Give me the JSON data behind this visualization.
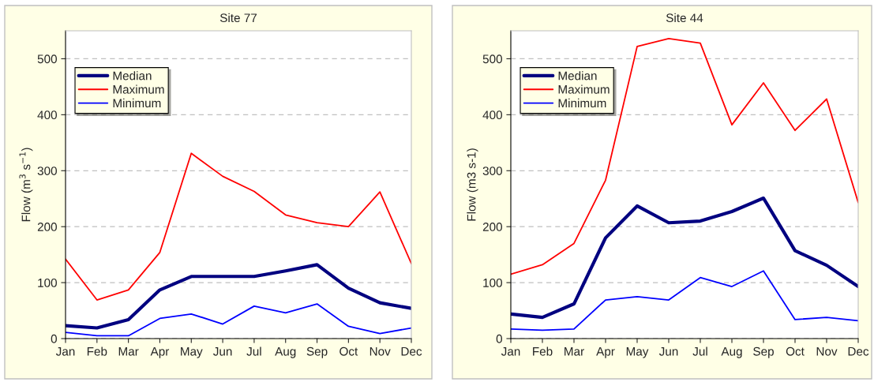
{
  "chart_data": [
    {
      "type": "line",
      "title": "Site 77",
      "ylabel": "Flow (m$^{3}$ s$^{−1}$)",
      "categories": [
        "Jan",
        "Feb",
        "Mar",
        "Apr",
        "May",
        "Jun",
        "Jul",
        "Aug",
        "Sep",
        "Oct",
        "Nov",
        "Dec"
      ],
      "ylim": [
        0,
        550
      ],
      "yticks": [
        0,
        100,
        200,
        300,
        400,
        500
      ],
      "grid": "y",
      "legend": "top left",
      "line_style": "solid",
      "series": [
        {
          "name": "Median",
          "color": "#000080",
          "values": [
            23,
            19,
            34,
            87,
            111,
            111,
            111,
            121,
            132,
            90,
            64,
            54
          ]
        },
        {
          "name": "Maximum",
          "color": "#ff0000",
          "values": [
            142,
            69,
            87,
            154,
            331,
            290,
            263,
            221,
            207,
            200,
            262,
            134
          ]
        },
        {
          "name": "Minimum",
          "color": "#0000ff",
          "values": [
            11,
            5,
            5,
            36,
            44,
            26,
            58,
            46,
            62,
            22,
            9,
            19
          ]
        }
      ]
    },
    {
      "type": "line",
      "title": "Site 44",
      "ylabel": "Flow (m3 s-1)",
      "categories": [
        "Jan",
        "Feb",
        "Mar",
        "Apr",
        "May",
        "Jun",
        "Jul",
        "Aug",
        "Sep",
        "Oct",
        "Nov",
        "Dec"
      ],
      "ylim": [
        0,
        550
      ],
      "yticks": [
        0,
        100,
        200,
        300,
        400,
        500
      ],
      "grid": "y",
      "legend": "top left",
      "line_style": "solid",
      "series": [
        {
          "name": "Median",
          "color": "#000080",
          "values": [
            44,
            38,
            62,
            180,
            237,
            207,
            210,
            227,
            251,
            157,
            131,
            93
          ]
        },
        {
          "name": "Maximum",
          "color": "#ff0000",
          "values": [
            115,
            132,
            170,
            283,
            522,
            536,
            528,
            382,
            457,
            372,
            428,
            243
          ]
        },
        {
          "name": "Minimum",
          "color": "#0000ff",
          "values": [
            17,
            15,
            17,
            69,
            75,
            69,
            109,
            93,
            121,
            34,
            38,
            32
          ]
        }
      ]
    }
  ]
}
